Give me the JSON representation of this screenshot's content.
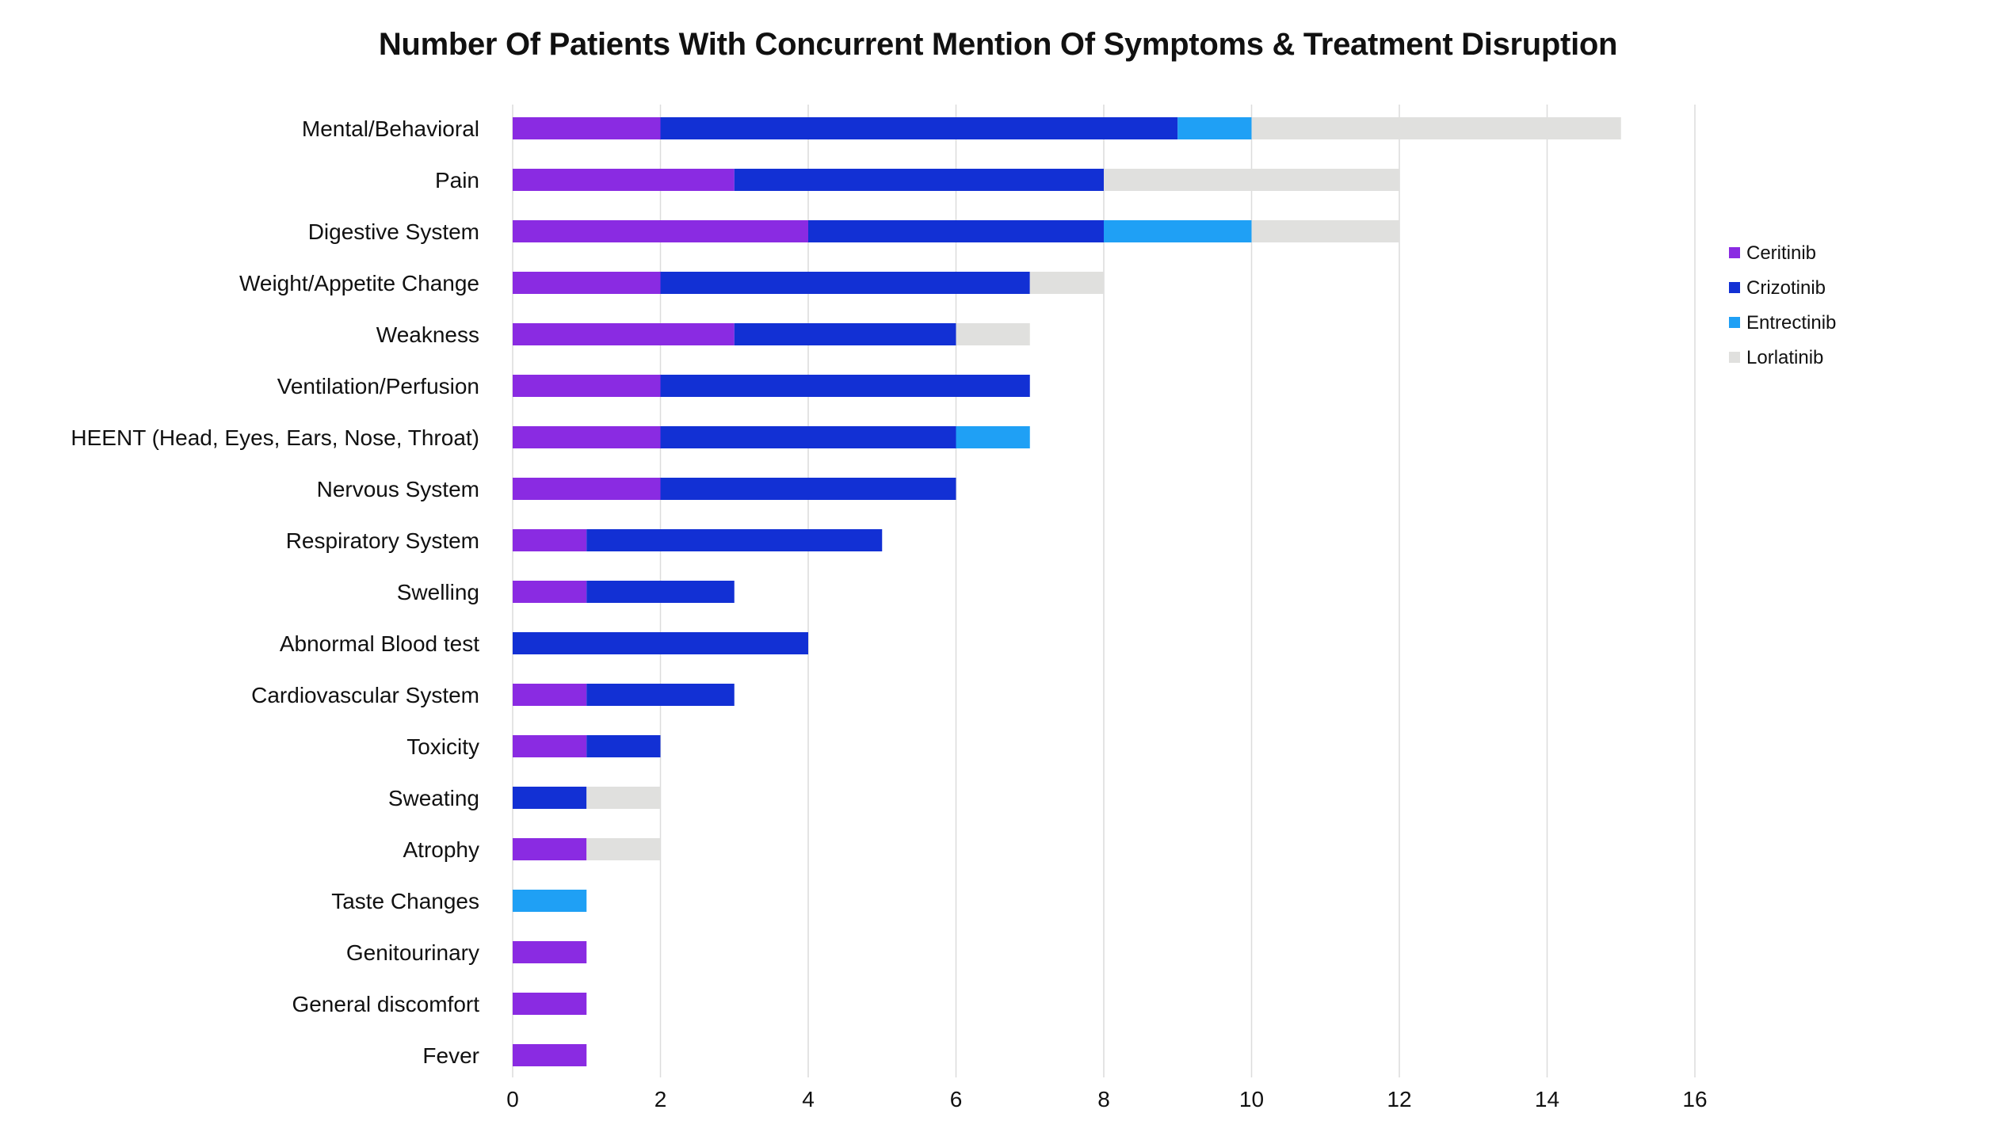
{
  "chart_data": {
    "type": "bar",
    "orientation": "horizontal",
    "stacked": true,
    "title": "Number Of Patients With Concurrent Mention Of Symptoms & Treatment Disruption",
    "xlabel": "",
    "ylabel": "",
    "xlim": [
      0,
      16
    ],
    "x_ticks": [
      "0",
      "2",
      "4",
      "6",
      "8",
      "10",
      "12",
      "14",
      "16"
    ],
    "grid": "vertical",
    "legend_position": "right",
    "categories": [
      "Mental/Behavioral",
      "Pain",
      "Digestive System",
      "Weight/Appetite Change",
      "Weakness",
      "Ventilation/Perfusion",
      "HEENT (Head, Eyes, Ears, Nose, Throat)",
      "Nervous System",
      "Respiratory System",
      "Swelling",
      "Abnormal Blood test",
      "Cardiovascular System",
      "Toxicity",
      "Sweating",
      "Atrophy",
      "Taste Changes",
      "Genitourinary",
      "General discomfort",
      "Fever"
    ],
    "series": [
      {
        "name": "Ceritinib",
        "color": "#8a2be2",
        "values": [
          2,
          3,
          4,
          2,
          3,
          2,
          2,
          2,
          1,
          1,
          0,
          1,
          1,
          0,
          1,
          0,
          1,
          1,
          1
        ]
      },
      {
        "name": "Crizotinib",
        "color": "#1230d4",
        "values": [
          7,
          5,
          4,
          5,
          3,
          5,
          4,
          4,
          4,
          2,
          4,
          2,
          1,
          1,
          0,
          0,
          0,
          0,
          0
        ]
      },
      {
        "name": "Entrectinib",
        "color": "#1fa0f5",
        "values": [
          1,
          0,
          2,
          0,
          0,
          0,
          1,
          0,
          0,
          0,
          0,
          0,
          0,
          0,
          0,
          1,
          0,
          0,
          0
        ]
      },
      {
        "name": "Lorlatinib",
        "color": "#e0e0de",
        "values": [
          5,
          4,
          2,
          1,
          1,
          0,
          0,
          0,
          0,
          0,
          0,
          0,
          0,
          1,
          1,
          0,
          0,
          0,
          0
        ]
      }
    ]
  }
}
